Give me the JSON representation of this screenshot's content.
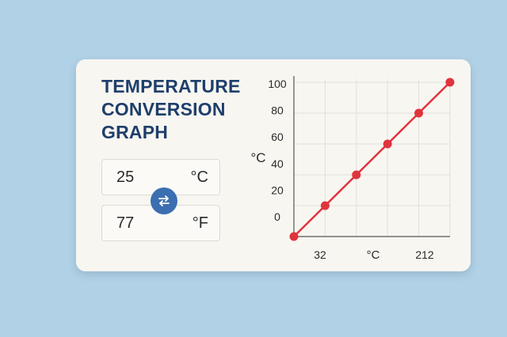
{
  "converter": {
    "title": "TEMPERATURE CONVERSION GRAPH",
    "celsius_value": "25",
    "celsius_unit": "°C",
    "fahrenheit_value": "77",
    "fahrenheit_unit": "°F",
    "swap_icon": "swap-arrows-icon"
  },
  "colors": {
    "background": "#b1d1e6",
    "card": "#f8f6f1",
    "title": "#1f3f6b",
    "swap_button": "#3b6fb1",
    "line": "#e0343d"
  },
  "chart_data": {
    "type": "line",
    "ylabel": "°C",
    "xlabel": "°C",
    "y_tick_labels": [
      "0",
      "20",
      "40",
      "60",
      "80",
      "100"
    ],
    "x_tick_labels": [
      "32",
      "212"
    ],
    "x": [
      32,
      68,
      104,
      140,
      176,
      212
    ],
    "y": [
      0,
      20,
      40,
      60,
      80,
      100
    ],
    "xlim": [
      32,
      212
    ],
    "ylim": [
      0,
      100
    ],
    "grid": true
  }
}
